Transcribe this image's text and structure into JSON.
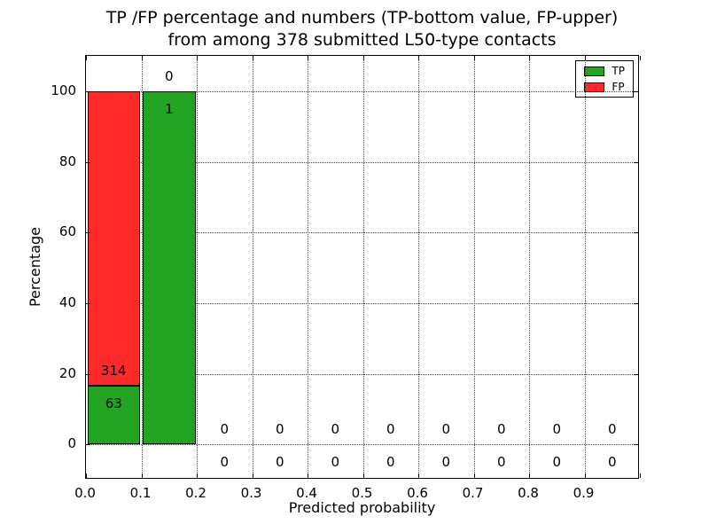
{
  "chart_data": {
    "type": "bar",
    "stacked": true,
    "title_line1": "TP /FP percentage and numbers (TP-bottom value, FP-upper)",
    "title_line2": "from among 378 submitted L50-type contacts",
    "xlabel": "Predicted probability",
    "ylabel": "Percentage",
    "xlim": [
      0.0,
      1.0
    ],
    "ylim": [
      -10,
      110
    ],
    "xticks": [
      0.0,
      0.1,
      0.2,
      0.3,
      0.4,
      0.5,
      0.6,
      0.7,
      0.8,
      0.9
    ],
    "xtick_labels": [
      "0.0",
      "0.1",
      "0.2",
      "0.3",
      "0.4",
      "0.5",
      "0.6",
      "0.7",
      "0.8",
      "0.9"
    ],
    "yticks": [
      0,
      20,
      40,
      60,
      80,
      100
    ],
    "grid": "dotted",
    "bin_edges": [
      0.0,
      0.1,
      0.2,
      0.3,
      0.4,
      0.5,
      0.6,
      0.7,
      0.8,
      0.9,
      1.0
    ],
    "total_contacts": 378,
    "legend_position": "upper right",
    "series": [
      {
        "name": "TP",
        "color": "#22a322",
        "percent": [
          16.7,
          100,
          0,
          0,
          0,
          0,
          0,
          0,
          0,
          0
        ],
        "counts": [
          63,
          1,
          0,
          0,
          0,
          0,
          0,
          0,
          0,
          0
        ]
      },
      {
        "name": "FP",
        "color": "#ff2b2b",
        "percent": [
          83.3,
          0,
          0,
          0,
          0,
          0,
          0,
          0,
          0,
          0
        ],
        "counts": [
          314,
          0,
          0,
          0,
          0,
          0,
          0,
          0,
          0,
          0
        ]
      }
    ]
  }
}
